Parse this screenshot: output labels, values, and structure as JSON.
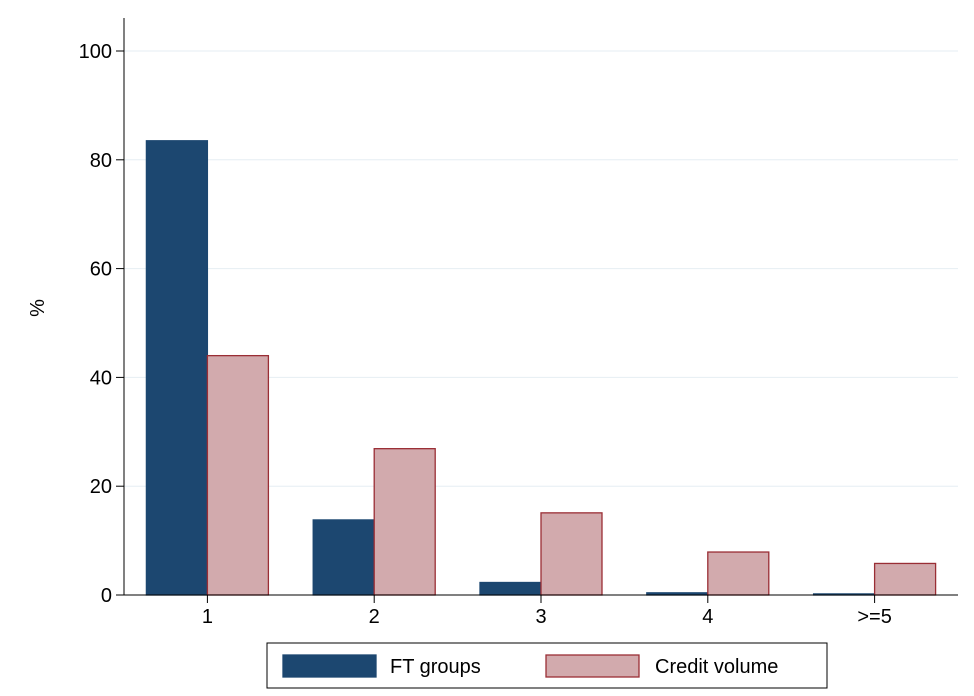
{
  "chart_data": {
    "type": "bar",
    "categories": [
      "1",
      "2",
      "3",
      "4",
      ">=5"
    ],
    "series": [
      {
        "name": "FT groups",
        "values": [
          83.5,
          13.8,
          2.3,
          0.4,
          0.2
        ],
        "color": "#1c4770",
        "stroke": "#1c4770"
      },
      {
        "name": "Credit volume",
        "values": [
          44.0,
          26.9,
          15.1,
          7.9,
          5.8
        ],
        "color": "#d2aaad",
        "stroke": "#9a2e35"
      }
    ],
    "title": "",
    "xlabel": "",
    "ylabel": "%",
    "ylim": [
      0,
      100
    ],
    "yticks": [
      "0",
      "20",
      "40",
      "60",
      "80",
      "100"
    ],
    "grid": true,
    "legend": "bottom"
  }
}
